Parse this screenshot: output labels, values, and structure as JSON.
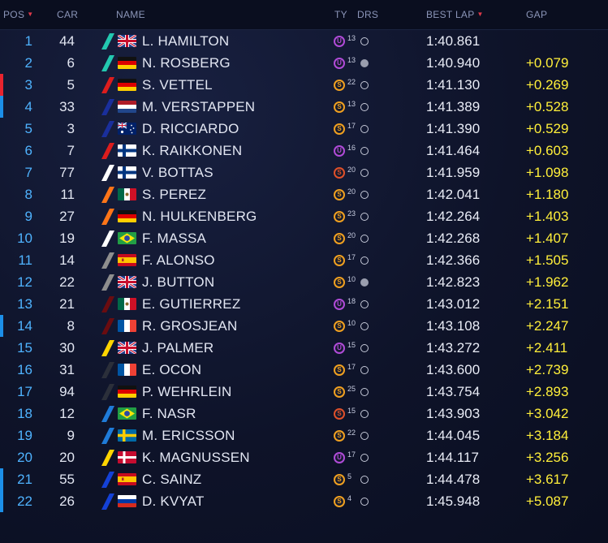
{
  "header": {
    "pos": "POS",
    "car": "CAR",
    "name": "NAME",
    "tyre": "TY",
    "drs": "DRS",
    "best_lap": "BEST LAP",
    "gap": "GAP"
  },
  "colors": {
    "position_text": "#4fb3ff",
    "gap_text": "#ffef3a",
    "sort_arrow": "#e03a4a",
    "position_change_bar_red": "#e8242e",
    "position_change_bar_blue": "#1c8fe8"
  },
  "tyre_colors": {
    "U": "#b04bd8",
    "S": "#f0a020",
    "SS": "#e0502a"
  },
  "team_colors": {
    "mercedes": "#23c8b0",
    "ferrari": "#dd1d1d",
    "redbull": "#1a2f9c",
    "williams": "#ffffff",
    "forceindia": "#ff7518",
    "mclaren": "#8e8e8e",
    "haas": "#6a0c10",
    "renault": "#ffd400",
    "manor": "#2b2f3a",
    "sauber": "#1f7bd8",
    "tororosso": "#1441d6"
  },
  "rows": [
    {
      "pos": "1",
      "car": "44",
      "name": "L. HAMILTON",
      "team": "mercedes",
      "flag": "uk",
      "tyre": "U",
      "tyre_laps": "13",
      "drs": "inactive",
      "best_lap": "1:40.861",
      "gap": "",
      "change": ""
    },
    {
      "pos": "2",
      "car": "6",
      "name": "N. ROSBERG",
      "team": "mercedes",
      "flag": "de",
      "tyre": "U",
      "tyre_laps": "13",
      "drs": "active",
      "best_lap": "1:40.940",
      "gap": "+0.079",
      "change": ""
    },
    {
      "pos": "3",
      "car": "5",
      "name": "S. VETTEL",
      "team": "ferrari",
      "flag": "de",
      "tyre": "S",
      "tyre_laps": "22",
      "drs": "inactive",
      "best_lap": "1:41.130",
      "gap": "+0.269",
      "change": "down"
    },
    {
      "pos": "4",
      "car": "33",
      "name": "M. VERSTAPPEN",
      "team": "redbull",
      "flag": "nl",
      "tyre": "S",
      "tyre_laps": "13",
      "drs": "inactive",
      "best_lap": "1:41.389",
      "gap": "+0.528",
      "change": "up"
    },
    {
      "pos": "5",
      "car": "3",
      "name": "D. RICCIARDO",
      "team": "redbull",
      "flag": "au",
      "tyre": "S",
      "tyre_laps": "17",
      "drs": "inactive",
      "best_lap": "1:41.390",
      "gap": "+0.529",
      "change": ""
    },
    {
      "pos": "6",
      "car": "7",
      "name": "K. RAIKKONEN",
      "team": "ferrari",
      "flag": "fi",
      "tyre": "U",
      "tyre_laps": "16",
      "drs": "inactive",
      "best_lap": "1:41.464",
      "gap": "+0.603",
      "change": ""
    },
    {
      "pos": "7",
      "car": "77",
      "name": "V. BOTTAS",
      "team": "williams",
      "flag": "fi",
      "tyre": "SS",
      "tyre_laps": "20",
      "drs": "inactive",
      "best_lap": "1:41.959",
      "gap": "+1.098",
      "change": ""
    },
    {
      "pos": "8",
      "car": "11",
      "name": "S. PEREZ",
      "team": "forceindia",
      "flag": "mx",
      "tyre": "S",
      "tyre_laps": "20",
      "drs": "inactive",
      "best_lap": "1:42.041",
      "gap": "+1.180",
      "change": ""
    },
    {
      "pos": "9",
      "car": "27",
      "name": "N. HULKENBERG",
      "team": "forceindia",
      "flag": "de",
      "tyre": "S",
      "tyre_laps": "23",
      "drs": "inactive",
      "best_lap": "1:42.264",
      "gap": "+1.403",
      "change": ""
    },
    {
      "pos": "10",
      "car": "19",
      "name": "F. MASSA",
      "team": "williams",
      "flag": "br",
      "tyre": "S",
      "tyre_laps": "20",
      "drs": "inactive",
      "best_lap": "1:42.268",
      "gap": "+1.407",
      "change": ""
    },
    {
      "pos": "11",
      "car": "14",
      "name": "F. ALONSO",
      "team": "mclaren",
      "flag": "es",
      "tyre": "S",
      "tyre_laps": "17",
      "drs": "inactive",
      "best_lap": "1:42.366",
      "gap": "+1.505",
      "change": ""
    },
    {
      "pos": "12",
      "car": "22",
      "name": "J. BUTTON",
      "team": "mclaren",
      "flag": "uk",
      "tyre": "S",
      "tyre_laps": "10",
      "drs": "active",
      "best_lap": "1:42.823",
      "gap": "+1.962",
      "change": ""
    },
    {
      "pos": "13",
      "car": "21",
      "name": "E. GUTIERREZ",
      "team": "haas",
      "flag": "mx",
      "tyre": "U",
      "tyre_laps": "18",
      "drs": "inactive",
      "best_lap": "1:43.012",
      "gap": "+2.151",
      "change": ""
    },
    {
      "pos": "14",
      "car": "8",
      "name": "R. GROSJEAN",
      "team": "haas",
      "flag": "fr",
      "tyre": "S",
      "tyre_laps": "10",
      "drs": "inactive",
      "best_lap": "1:43.108",
      "gap": "+2.247",
      "change": "up"
    },
    {
      "pos": "15",
      "car": "30",
      "name": "J. PALMER",
      "team": "renault",
      "flag": "uk",
      "tyre": "U",
      "tyre_laps": "15",
      "drs": "inactive",
      "best_lap": "1:43.272",
      "gap": "+2.411",
      "change": ""
    },
    {
      "pos": "16",
      "car": "31",
      "name": "E. OCON",
      "team": "manor",
      "flag": "fr",
      "tyre": "S",
      "tyre_laps": "17",
      "drs": "inactive",
      "best_lap": "1:43.600",
      "gap": "+2.739",
      "change": ""
    },
    {
      "pos": "17",
      "car": "94",
      "name": "P. WEHRLEIN",
      "team": "manor",
      "flag": "de",
      "tyre": "S",
      "tyre_laps": "25",
      "drs": "inactive",
      "best_lap": "1:43.754",
      "gap": "+2.893",
      "change": ""
    },
    {
      "pos": "18",
      "car": "12",
      "name": "F. NASR",
      "team": "sauber",
      "flag": "br",
      "tyre": "SS",
      "tyre_laps": "15",
      "drs": "inactive",
      "best_lap": "1:43.903",
      "gap": "+3.042",
      "change": ""
    },
    {
      "pos": "19",
      "car": "9",
      "name": "M. ERICSSON",
      "team": "sauber",
      "flag": "se",
      "tyre": "S",
      "tyre_laps": "22",
      "drs": "inactive",
      "best_lap": "1:44.045",
      "gap": "+3.184",
      "change": ""
    },
    {
      "pos": "20",
      "car": "20",
      "name": "K. MAGNUSSEN",
      "team": "renault",
      "flag": "dk",
      "tyre": "U",
      "tyre_laps": "17",
      "drs": "inactive",
      "best_lap": "1:44.117",
      "gap": "+3.256",
      "change": ""
    },
    {
      "pos": "21",
      "car": "55",
      "name": "C. SAINZ",
      "team": "tororosso",
      "flag": "es",
      "tyre": "S",
      "tyre_laps": "5",
      "drs": "inactive",
      "best_lap": "1:44.478",
      "gap": "+3.617",
      "change": "up"
    },
    {
      "pos": "22",
      "car": "26",
      "name": "D. KVYAT",
      "team": "tororosso",
      "flag": "ru",
      "tyre": "S",
      "tyre_laps": "4",
      "drs": "inactive",
      "best_lap": "1:45.948",
      "gap": "+5.087",
      "change": "up"
    }
  ]
}
